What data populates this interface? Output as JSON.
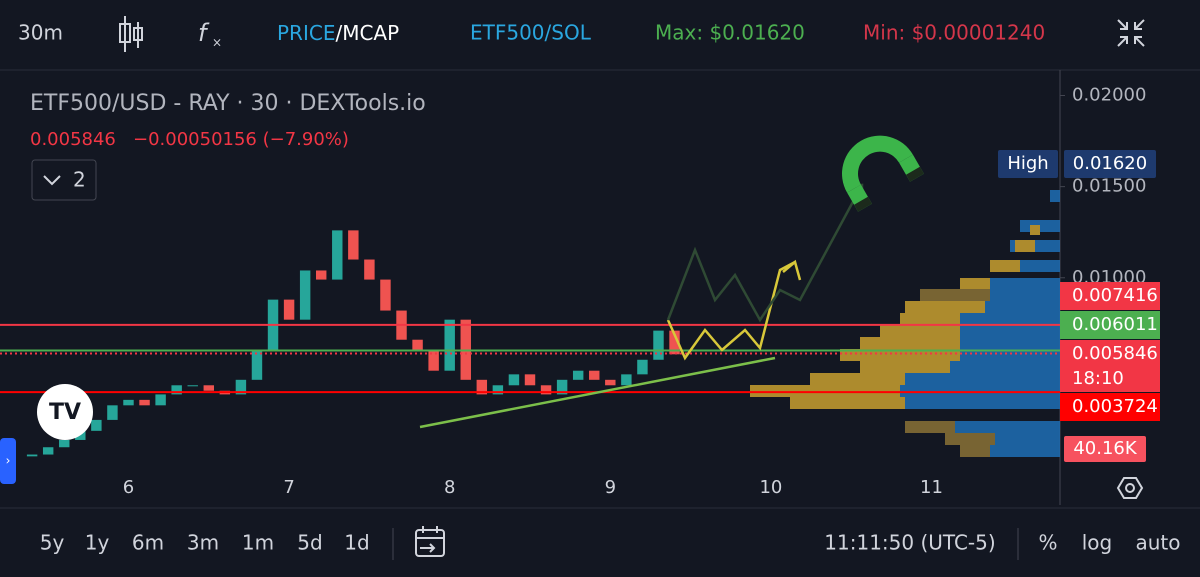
{
  "toolbar": {
    "interval": "30m",
    "price": "PRICE",
    "mcap": "/MCAP",
    "pair": "ETF500/SOL",
    "max": "Max: $0.01620",
    "min": "Min: $0.00001240"
  },
  "legend": {
    "title": "ETF500/USD - RAY · 30 · DEXTools.io",
    "last": "0.005846",
    "change": "−0.00050156 (−7.90%)",
    "indicators": "2"
  },
  "chart_data": {
    "type": "candlestick",
    "x": [
      5.4,
      5.5,
      5.6,
      5.7,
      5.8,
      5.9,
      6.0,
      6.1,
      6.2,
      6.3,
      6.4,
      6.5,
      6.6,
      6.7,
      6.8,
      6.9,
      7.0,
      7.1,
      7.2,
      7.3,
      7.4,
      7.5,
      7.6,
      7.7,
      7.8,
      7.9,
      8.0,
      8.1,
      8.2,
      8.3,
      8.4,
      8.5,
      8.6,
      8.7,
      8.8,
      8.9,
      9.0,
      9.1,
      9.2,
      9.3,
      9.4
    ],
    "open": [
      0.0002,
      0.0003,
      0.0007,
      0.0011,
      0.0016,
      0.0022,
      0.003,
      0.0033,
      0.003,
      0.0036,
      0.0041,
      0.0041,
      0.0038,
      0.0036,
      0.0044,
      0.006,
      0.0088,
      0.0077,
      0.0104,
      0.0099,
      0.0126,
      0.011,
      0.0099,
      0.0082,
      0.0066,
      0.006,
      0.0049,
      0.0077,
      0.0044,
      0.0036,
      0.0041,
      0.0047,
      0.0041,
      0.0036,
      0.0044,
      0.0049,
      0.0044,
      0.0041,
      0.0047,
      0.0055,
      0.0071
    ],
    "close": [
      0.0003,
      0.0007,
      0.0011,
      0.0016,
      0.0022,
      0.003,
      0.0033,
      0.003,
      0.0036,
      0.0041,
      0.0041,
      0.0038,
      0.0036,
      0.0044,
      0.006,
      0.0088,
      0.0077,
      0.0104,
      0.0099,
      0.0126,
      0.011,
      0.0099,
      0.0082,
      0.0066,
      0.006,
      0.0049,
      0.0077,
      0.0044,
      0.0036,
      0.0041,
      0.0047,
      0.0041,
      0.0036,
      0.0044,
      0.0049,
      0.0044,
      0.0041,
      0.0047,
      0.0055,
      0.0071,
      0.0058
    ],
    "up_color": "#26a69a",
    "down_color": "#ef5350",
    "xlim": [
      5.2,
      11.8
    ],
    "xticks": [
      6,
      7,
      8,
      9,
      10,
      11
    ],
    "ylim": [
      0,
      0.0214
    ],
    "yticks": [
      {
        "value": 0.02,
        "label": "0.02000"
      },
      {
        "value": 0.015,
        "label": "0.01500"
      },
      {
        "value": 0.01,
        "label": "0.01000"
      }
    ],
    "price_lines": [
      {
        "value": 0.007416,
        "color": "#f23645"
      },
      {
        "value": 0.006011,
        "color": "#4caf50"
      },
      {
        "value": 0.005846,
        "color": "#f23645"
      },
      {
        "value": 0.003724,
        "color": "#ff0000"
      }
    ],
    "high_label": "High",
    "high": {
      "value": 0.0162,
      "label": "0.01620"
    },
    "countdown": "18:10",
    "volume_label": "40.16K"
  },
  "bottom": {
    "ranges": [
      "5y",
      "1y",
      "6m",
      "3m",
      "1m",
      "5d",
      "1d"
    ],
    "time": "11:11:50 (UTC-5)",
    "percent": "%",
    "log": "log",
    "auto": "auto"
  }
}
